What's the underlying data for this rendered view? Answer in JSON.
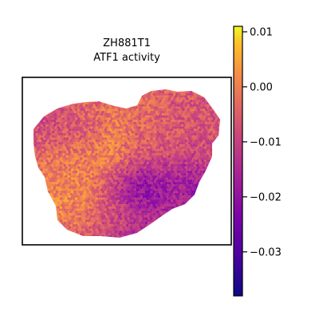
{
  "chart_data": {
    "type": "heatmap",
    "title_lines": [
      "ZH881T1",
      "ATF1 activity"
    ],
    "xlabel": "",
    "ylabel": "",
    "colormap": "plasma",
    "colorbar": {
      "min": -0.038,
      "max": 0.011,
      "ticks": [
        0.01,
        0.0,
        -0.01,
        -0.02,
        -0.03
      ],
      "tick_labels": [
        "0.01",
        "0.00",
        "−0.01",
        "−0.02",
        "−0.03"
      ]
    },
    "description_of_values": "spatial spots over tissue, values mostly in range -0.03 to 0.01",
    "grid": false,
    "legend": "colorbar-right"
  },
  "colors": {
    "frame": "#000000",
    "background": "#ffffff"
  }
}
